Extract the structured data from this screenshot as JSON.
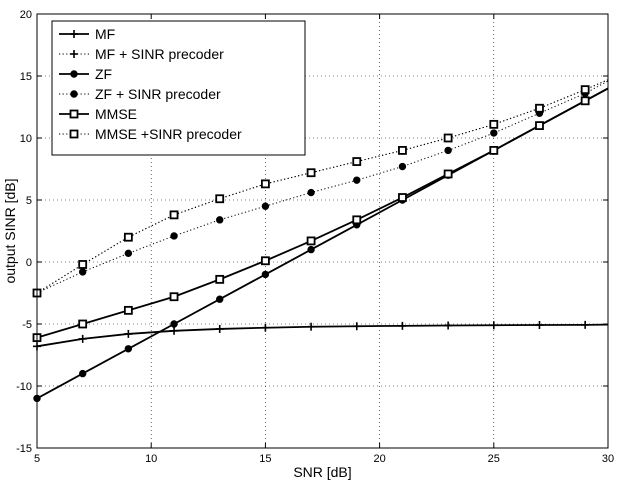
{
  "chart_data": {
    "type": "line",
    "title": "",
    "xlabel": "SNR [dB]",
    "ylabel": "output SINR [dB]",
    "xlim": [
      5,
      30
    ],
    "ylim": [
      -15,
      20
    ],
    "xticks": [
      5,
      10,
      15,
      20,
      25,
      30
    ],
    "yticks": [
      -15,
      -10,
      -5,
      0,
      5,
      10,
      15,
      20
    ],
    "grid": true,
    "legend_position": "top-left",
    "x": [
      5,
      7,
      9,
      11,
      13,
      15,
      17,
      19,
      21,
      23,
      25,
      27,
      29,
      30
    ],
    "series": [
      {
        "name": "MF",
        "line_style": "solid",
        "marker": "plus",
        "values": [
          -6.8,
          -6.2,
          -5.8,
          -5.55,
          -5.4,
          -5.3,
          -5.22,
          -5.18,
          -5.15,
          -5.12,
          -5.1,
          -5.08,
          -5.07,
          -5.05
        ]
      },
      {
        "name": "MF + SINR precoder",
        "line_style": "dotted",
        "marker": "plus",
        "values": [
          -2.5,
          -0.2,
          2.0,
          3.8,
          5.1,
          6.3,
          7.2,
          8.1,
          9.0,
          10.0,
          11.1,
          12.4,
          13.9,
          14.7
        ]
      },
      {
        "name": "ZF",
        "line_style": "solid",
        "marker": "circle",
        "values": [
          -11.0,
          -9.0,
          -7.0,
          -5.0,
          -3.0,
          -1.0,
          1.0,
          3.0,
          5.0,
          7.0,
          9.0,
          11.0,
          13.0,
          14.0
        ]
      },
      {
        "name": "ZF + SINR precoder",
        "line_style": "dotted",
        "marker": "circle",
        "values": [
          -2.5,
          -0.8,
          0.7,
          2.1,
          3.4,
          4.5,
          5.6,
          6.6,
          7.7,
          9.0,
          10.4,
          12.0,
          13.6,
          14.6
        ]
      },
      {
        "name": "MMSE",
        "line_style": "solid",
        "marker": "square",
        "values": [
          -6.1,
          -5.0,
          -3.9,
          -2.8,
          -1.4,
          0.1,
          1.7,
          3.4,
          5.2,
          7.1,
          9.0,
          11.0,
          13.0,
          14.0
        ]
      },
      {
        "name": "MMSE +SINR precoder",
        "line_style": "dotted",
        "marker": "square",
        "values": [
          -2.5,
          -0.2,
          2.0,
          3.8,
          5.1,
          6.3,
          7.2,
          8.1,
          9.0,
          10.0,
          11.1,
          12.4,
          13.9,
          14.7
        ]
      }
    ]
  }
}
